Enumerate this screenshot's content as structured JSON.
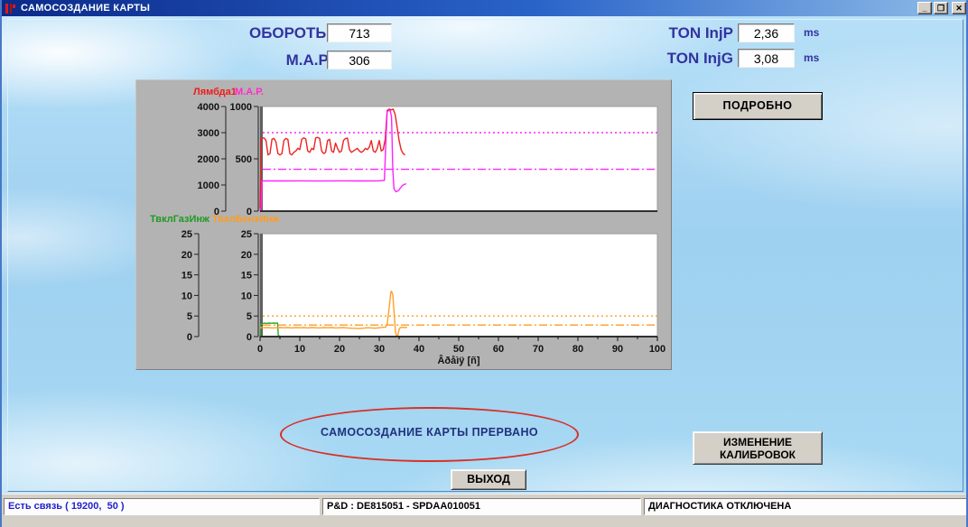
{
  "window": {
    "title": "САМОСОЗДАНИЕ КАРТЫ",
    "controls": {
      "minimize": "_",
      "restore": "❐",
      "close": "✕"
    }
  },
  "colors": {
    "label_navy": "#3333a0",
    "status_blue": "#2222cc",
    "annotation_red": "#d93025",
    "chart_panel_gray": "#b3b3b3"
  },
  "readouts": {
    "rpm": {
      "label": "ОБОРОТЫ",
      "value": "713"
    },
    "map": {
      "label": "М.А.Р.",
      "value": "306"
    },
    "ton_injp": {
      "label": "TON InjP",
      "value": "2,36",
      "unit": "ms"
    },
    "ton_injg": {
      "label": "TON InjG",
      "value": "3,08",
      "unit": "ms"
    }
  },
  "buttons": {
    "details": "ПОДРОБНО",
    "calibration_line1": "ИЗМЕНЕНИЕ",
    "calibration_line2": "КАЛИБРОВОК",
    "exit": "ВЫХОД"
  },
  "message": {
    "text": "САМОСОЗДАНИЕ КАРТЫ ПРЕРВАНО"
  },
  "status": {
    "connection": "Есть связь ( 19200,  50 )",
    "device": "P&D : DE815051 - SPDAA010051",
    "diagnostics": "ДИАГНОСТИКА ОТКЛЮЧЕНА"
  },
  "chart_data": [
    {
      "type": "line",
      "x_range": [
        0,
        100
      ],
      "x_ticks": [
        0,
        10,
        20,
        30,
        40,
        50,
        60,
        70,
        80,
        90,
        100
      ],
      "x_minor_step": 5,
      "show_x_labels": false,
      "xlabel": "",
      "axes": [
        {
          "name": "Лямбда1",
          "color": "#ee1c1c",
          "range": [
            0,
            4000
          ],
          "ticks": [
            0,
            1000,
            2000,
            3000,
            4000
          ]
        },
        {
          "name": "М.А.Р.",
          "color": "#ff2cc8",
          "range": [
            0,
            1000
          ],
          "ticks": [
            0,
            500,
            1000
          ]
        }
      ],
      "ref_lines": [
        {
          "axis": 1,
          "value": 750,
          "style": "dotted",
          "color": "#ff22ff"
        },
        {
          "axis": 1,
          "value": 400,
          "style": "dashdot",
          "color": "#ff22ff"
        }
      ],
      "series": [
        {
          "name": "Лямбда1",
          "axis": 0,
          "color": "#ee2222",
          "points": [
            [
              0,
              100
            ],
            [
              0.3,
              2780
            ],
            [
              1,
              2800
            ],
            [
              1.5,
              2700
            ],
            [
              2,
              2150
            ],
            [
              2.5,
              2200
            ],
            [
              3,
              2750
            ],
            [
              3.5,
              2780
            ],
            [
              4,
              2650
            ],
            [
              4.5,
              2200
            ],
            [
              5,
              2150
            ],
            [
              5.5,
              2200
            ],
            [
              6,
              2700
            ],
            [
              6.5,
              2780
            ],
            [
              7,
              2740
            ],
            [
              7.5,
              2200
            ],
            [
              8,
              2150
            ],
            [
              8.5,
              2250
            ],
            [
              9,
              2300
            ],
            [
              9.5,
              2400
            ],
            [
              10,
              2350
            ],
            [
              10.5,
              2750
            ],
            [
              11,
              2800
            ],
            [
              11.5,
              2760
            ],
            [
              12,
              2300
            ],
            [
              12.5,
              2250
            ],
            [
              13,
              2400
            ],
            [
              13.5,
              2350
            ],
            [
              14,
              2800
            ],
            [
              14.5,
              2820
            ],
            [
              15,
              2780
            ],
            [
              15.5,
              2300
            ],
            [
              16,
              2200
            ],
            [
              16.5,
              2250
            ],
            [
              17,
              2700
            ],
            [
              17.5,
              2750
            ],
            [
              18,
              2300
            ],
            [
              18.5,
              2250
            ],
            [
              19,
              2600
            ],
            [
              19.5,
              2400
            ],
            [
              20,
              2250
            ],
            [
              20.5,
              2300
            ],
            [
              21,
              2700
            ],
            [
              21.5,
              2780
            ],
            [
              22,
              2790
            ],
            [
              22.5,
              2350
            ],
            [
              23,
              2250
            ],
            [
              23.5,
              2300
            ],
            [
              24,
              2350
            ],
            [
              24.5,
              2400
            ],
            [
              25,
              2300
            ],
            [
              25.5,
              2250
            ],
            [
              26,
              2300
            ],
            [
              26.5,
              2400
            ],
            [
              27,
              2350
            ],
            [
              27.5,
              2450
            ],
            [
              28,
              2700
            ],
            [
              28.5,
              2300
            ],
            [
              29,
              2250
            ],
            [
              29.5,
              2400
            ],
            [
              30,
              2700
            ],
            [
              30.5,
              2300
            ],
            [
              31,
              2350
            ],
            [
              31.5,
              2750
            ],
            [
              32,
              3850
            ],
            [
              32.5,
              3900
            ],
            [
              33,
              3870
            ],
            [
              33.5,
              3900
            ],
            [
              34,
              3700
            ],
            [
              34.5,
              3200
            ],
            [
              35,
              2700
            ],
            [
              35.5,
              2350
            ],
            [
              36,
              2200
            ],
            [
              36.5,
              2150
            ]
          ]
        },
        {
          "name": "М.А.Р.",
          "axis": 1,
          "color": "#ff22ff",
          "points": [
            [
              0,
              0
            ],
            [
              0.3,
              30
            ],
            [
              0.5,
              290
            ],
            [
              5,
              289
            ],
            [
              10,
              290
            ],
            [
              15,
              288
            ],
            [
              20,
              290
            ],
            [
              25,
              289
            ],
            [
              30,
              290
            ],
            [
              31.3,
              295
            ],
            [
              31.7,
              700
            ],
            [
              32,
              950
            ],
            [
              32.4,
              965
            ],
            [
              32.8,
              955
            ],
            [
              33.1,
              900
            ],
            [
              33.4,
              400
            ],
            [
              33.7,
              215
            ],
            [
              34.2,
              185
            ],
            [
              34.8,
              195
            ],
            [
              35.3,
              220
            ],
            [
              35.8,
              245
            ],
            [
              36.3,
              255
            ],
            [
              36.8,
              262
            ]
          ]
        }
      ]
    },
    {
      "type": "line",
      "x_range": [
        0,
        100
      ],
      "x_ticks": [
        0,
        10,
        20,
        30,
        40,
        50,
        60,
        70,
        80,
        90,
        100
      ],
      "x_minor_step": 5,
      "show_x_labels": true,
      "xlabel": "Âðåìÿ [ñ]",
      "axes": [
        {
          "name": "ТвклГазИнж",
          "color": "#1f9a1f",
          "range": [
            0,
            25
          ],
          "ticks": [
            0,
            5,
            10,
            15,
            20,
            25
          ]
        },
        {
          "name": "ТвклБензИнж",
          "color": "#ff9c20",
          "range": [
            0,
            25
          ],
          "ticks": [
            0,
            5,
            10,
            15,
            20,
            25
          ]
        }
      ],
      "ref_lines": [
        {
          "axis": 1,
          "value": 5,
          "style": "dotted",
          "color": "#ff9c20"
        },
        {
          "axis": 1,
          "value": 2.8,
          "style": "dashdot",
          "color": "#ff9c20"
        }
      ],
      "series": [
        {
          "name": "ТвклГазИнж",
          "axis": 0,
          "color": "#2fa82f",
          "points": [
            [
              0,
              0
            ],
            [
              0.15,
              2.9
            ],
            [
              0.4,
              3.1
            ],
            [
              1,
              3.3
            ],
            [
              1.6,
              3.2
            ],
            [
              2.2,
              3.3
            ],
            [
              2.8,
              3.25
            ],
            [
              3.4,
              3.3
            ],
            [
              4,
              3.25
            ],
            [
              4.4,
              3.3
            ],
            [
              4.6,
              0.3
            ],
            [
              4.9,
              0.1
            ],
            [
              5.5,
              0.05
            ],
            [
              6,
              0
            ]
          ]
        },
        {
          "name": "ТвклБензИнж",
          "axis": 1,
          "color": "#ffa028",
          "points": [
            [
              0,
              2.2
            ],
            [
              1,
              2.15
            ],
            [
              2,
              2.2
            ],
            [
              3,
              2.1
            ],
            [
              4,
              2.15
            ],
            [
              5,
              2.2
            ],
            [
              6,
              2.15
            ],
            [
              7,
              2.2
            ],
            [
              8,
              2.1
            ],
            [
              9,
              2.2
            ],
            [
              10,
              2.15
            ],
            [
              11,
              2.2
            ],
            [
              12,
              2.1
            ],
            [
              13,
              2.2
            ],
            [
              14,
              2.15
            ],
            [
              15,
              2.1
            ],
            [
              16,
              2.2
            ],
            [
              17,
              2.15
            ],
            [
              18,
              2.2
            ],
            [
              19,
              2.1
            ],
            [
              20,
              2.15
            ],
            [
              21,
              2.2
            ],
            [
              22,
              2.1
            ],
            [
              23,
              2.05
            ],
            [
              24,
              2.0
            ],
            [
              25,
              1.95
            ],
            [
              26,
              2.05
            ],
            [
              27,
              2.15
            ],
            [
              28,
              2.1
            ],
            [
              29,
              2.05
            ],
            [
              30,
              2.15
            ],
            [
              31,
              2.25
            ],
            [
              31.6,
              2.3
            ],
            [
              32,
              3
            ],
            [
              32.5,
              7
            ],
            [
              32.9,
              10.8
            ],
            [
              33.1,
              11
            ],
            [
              33.4,
              10.2
            ],
            [
              33.8,
              5
            ],
            [
              34.1,
              1
            ],
            [
              34.4,
              0.15
            ],
            [
              34.7,
              0.4
            ],
            [
              35,
              1.8
            ],
            [
              35.3,
              2.2
            ],
            [
              36,
              2.25
            ],
            [
              36.6,
              2.2
            ],
            [
              37,
              2.25
            ]
          ]
        }
      ]
    }
  ]
}
